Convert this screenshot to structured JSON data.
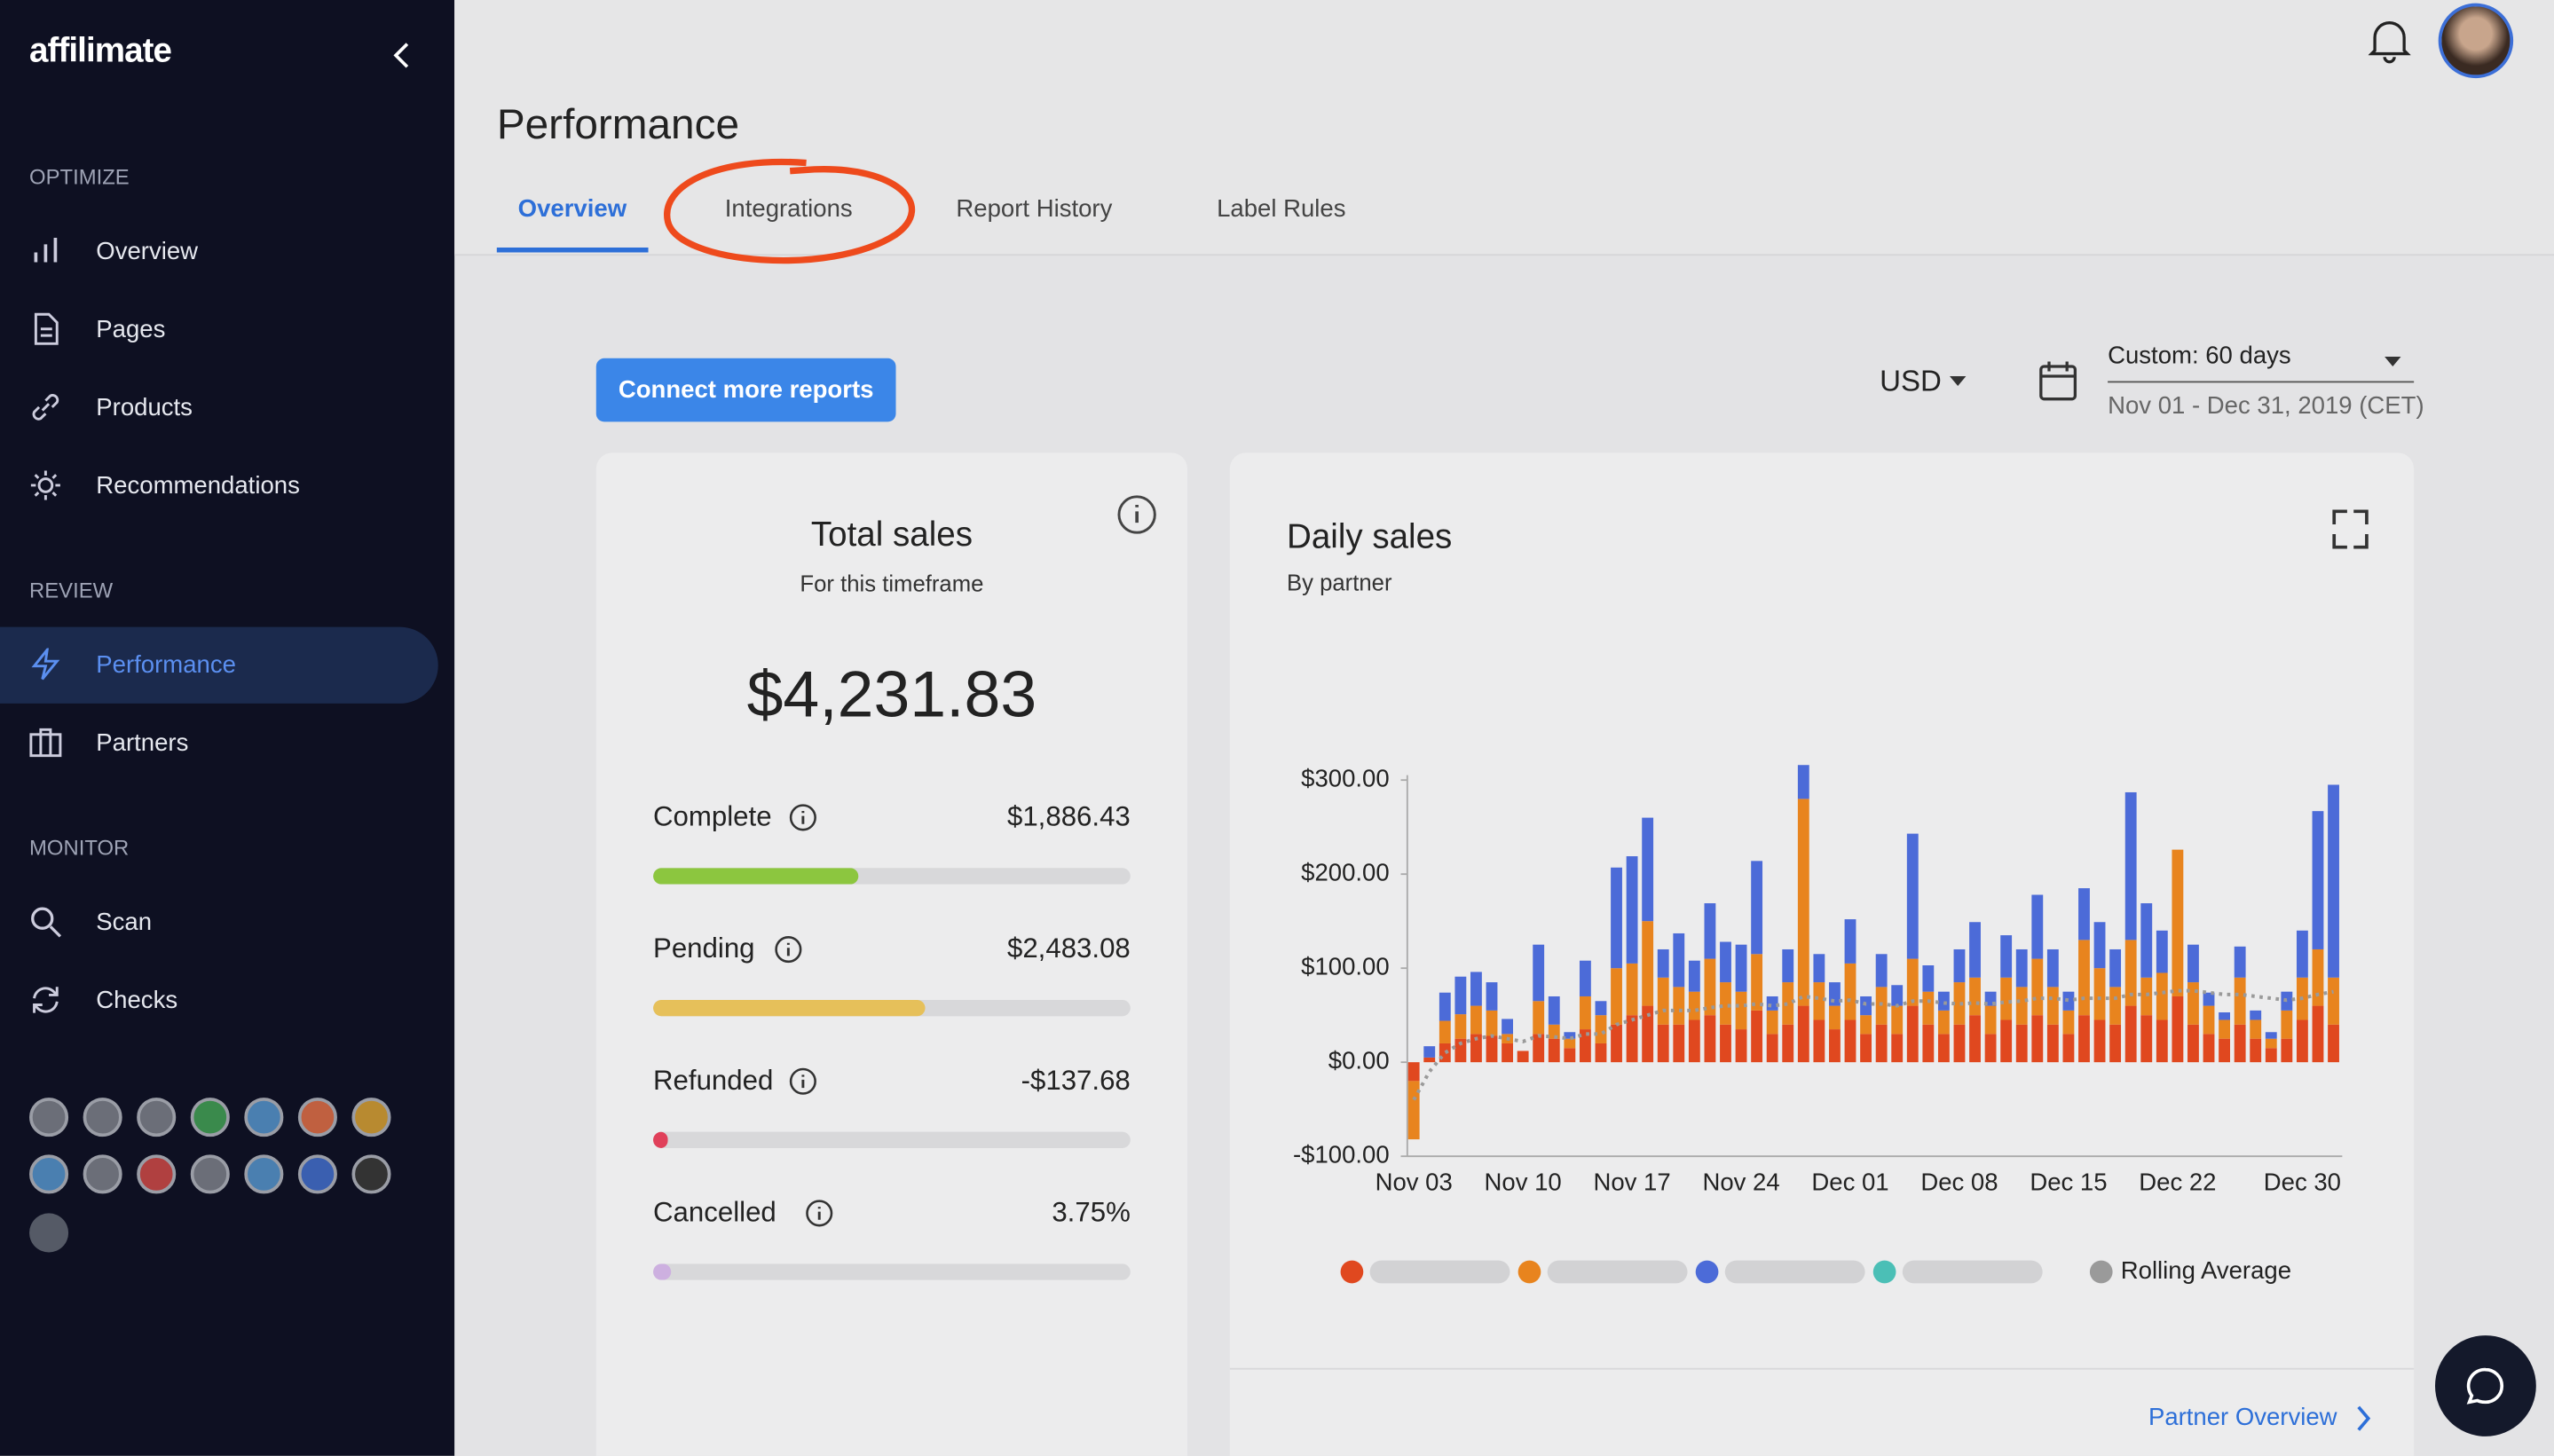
{
  "sidebar": {
    "logo": "affilimate",
    "sections": [
      {
        "heading": "OPTIMIZE",
        "items": [
          "Overview",
          "Pages",
          "Products",
          "Recommendations"
        ]
      },
      {
        "heading": "REVIEW",
        "items": [
          "Performance",
          "Partners"
        ]
      },
      {
        "heading": "MONITOR",
        "items": [
          "Scan",
          "Checks"
        ]
      }
    ]
  },
  "header": {
    "title": "Performance",
    "tabs": [
      "Overview",
      "Integrations",
      "Report History",
      "Label Rules"
    ]
  },
  "toolbar": {
    "button": "Connect more reports",
    "currency": "USD",
    "range": "Custom: 60 days",
    "dates": "Nov 01 - Dec 31, 2019 (CET)"
  },
  "total_sales": {
    "title": "Total sales",
    "subtitle": "For this timeframe",
    "amount": "$4,231.83",
    "rows": [
      {
        "label": "Complete",
        "value": 1886.43,
        "value_label": "$1,886.43"
      },
      {
        "label": "Pending",
        "value": 2483.08,
        "value_label": "$2,483.08"
      },
      {
        "label": "Refunded",
        "value": -137.68,
        "value_label": "-$137.68"
      },
      {
        "label": "Cancelled",
        "value": 3.75,
        "value_label": "3.75%"
      }
    ]
  },
  "chart_data": {
    "type": "bar",
    "stacked": true,
    "title": "Daily sales",
    "subtitle": "By partner",
    "categories": [
      "Nov 03",
      null,
      null,
      null,
      null,
      null,
      null,
      "Nov 10",
      null,
      null,
      null,
      null,
      null,
      null,
      "Nov 17",
      null,
      null,
      null,
      null,
      null,
      null,
      "Nov 24",
      null,
      null,
      null,
      null,
      null,
      null,
      "Dec 01",
      null,
      null,
      null,
      null,
      null,
      null,
      "Dec 08",
      null,
      null,
      null,
      null,
      null,
      null,
      "Dec 15",
      null,
      null,
      null,
      null,
      null,
      null,
      "Dec 22",
      null,
      null,
      null,
      null,
      null,
      null,
      null,
      "Dec 30",
      null,
      null
    ],
    "ylim": [
      -100,
      300
    ],
    "yticks": [
      {
        "value": -100,
        "label": "-$100.00"
      },
      {
        "value": 0,
        "label": "$0.00"
      },
      {
        "value": 100,
        "label": "$100.00"
      },
      {
        "value": 200,
        "label": "$200.00"
      },
      {
        "value": 300,
        "label": "$300.00"
      }
    ],
    "grid": false,
    "series": [
      {
        "color": "#e0481f",
        "values": [
          -20,
          5,
          20,
          25,
          30,
          28,
          20,
          12,
          30,
          25,
          15,
          35,
          20,
          40,
          50,
          60,
          40,
          40,
          45,
          50,
          40,
          35,
          55,
          30,
          40,
          60,
          45,
          35,
          45,
          30,
          40,
          30,
          60,
          40,
          30,
          40,
          50,
          30,
          45,
          40,
          50,
          40,
          30,
          50,
          45,
          40,
          60,
          50,
          45,
          70,
          40,
          30,
          25,
          40,
          25,
          15,
          25,
          45,
          60,
          40
        ]
      },
      {
        "color": "#e8841e",
        "values": [
          -62,
          0,
          24,
          26,
          30,
          27,
          10,
          0,
          35,
          15,
          10,
          35,
          30,
          60,
          55,
          90,
          50,
          40,
          30,
          60,
          45,
          40,
          60,
          25,
          45,
          220,
          40,
          25,
          60,
          20,
          40,
          30,
          50,
          35,
          25,
          45,
          40,
          30,
          45,
          40,
          60,
          40,
          25,
          80,
          55,
          40,
          70,
          40,
          50,
          156,
          45,
          30,
          20,
          50,
          20,
          10,
          30,
          45,
          60,
          50
        ]
      },
      {
        "color": "#4c6bd8",
        "values": [
          0,
          12,
          30,
          40,
          36,
          30,
          16,
          0,
          60,
          30,
          7,
          38,
          15,
          107,
          114,
          110,
          30,
          57,
          33,
          59,
          43,
          50,
          99,
          15,
          35,
          36,
          30,
          25,
          47,
          20,
          35,
          22,
          133,
          28,
          20,
          35,
          59,
          15,
          45,
          40,
          68,
          40,
          20,
          55,
          49,
          40,
          157,
          79,
          45,
          0,
          40,
          14,
          8,
          33,
          10,
          7,
          20,
          50,
          147,
          205
        ]
      }
    ],
    "rolling_average": {
      "name": "Rolling Average",
      "color": "#9a9a9a",
      "values": [
        -40,
        -10,
        10,
        20,
        25,
        28,
        25,
        22,
        28,
        27,
        25,
        30,
        30,
        40,
        45,
        50,
        55,
        55,
        55,
        58,
        60,
        60,
        62,
        60,
        62,
        70,
        68,
        65,
        66,
        62,
        62,
        60,
        65,
        65,
        63,
        62,
        63,
        62,
        64,
        65,
        68,
        68,
        66,
        68,
        68,
        68,
        72,
        72,
        74,
        76,
        76,
        74,
        72,
        72,
        70,
        68,
        66,
        68,
        72,
        75
      ]
    },
    "footer_link": "Partner Overview"
  }
}
